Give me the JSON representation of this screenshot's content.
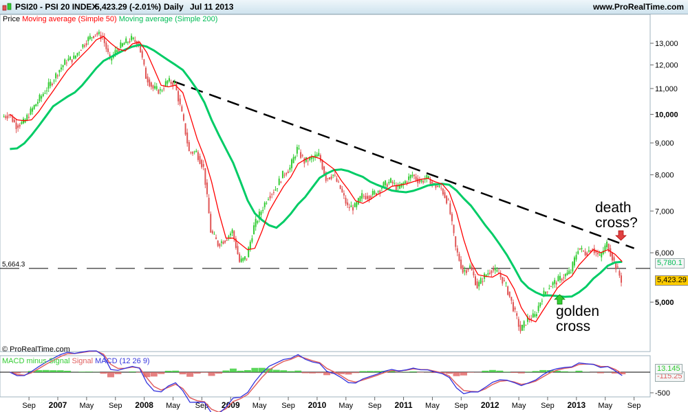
{
  "header": {
    "symbol": "PSI20 - PSI 20 INDEX",
    "quote": "5,423.29 (-2.01%)",
    "period": "Daily",
    "date": "Jul 11 2013",
    "site": "www.ProRealTime.com"
  },
  "legend": {
    "price": "Price",
    "ma50": "Moving average (Simple 50)",
    "ma200": "Moving average (Simple 200)"
  },
  "macd_legend": {
    "hist": "MACD minus Signal",
    "signal": "Signal",
    "macd": "MACD (12 26 9)"
  },
  "copyright": "© ProRealTime.com",
  "annotations": {
    "death_line1": "death",
    "death_line2": "cross?",
    "golden_line1": "golden",
    "golden_line2": "cross"
  },
  "colors": {
    "up": "#33cc33",
    "down": "#e05555",
    "ma50": "#ff0000",
    "ma200": "#00cc66",
    "macd": "#3333dd",
    "signal": "#e06060",
    "hist_pos": "#33cc33",
    "hist_neg": "#e06060",
    "last_price_bg": "#ffcc00"
  },
  "chart_data": {
    "type": "candlestick",
    "y_scale": "log",
    "ylim": [
      4200,
      14000
    ],
    "yticks": [
      "13,000",
      "12,000",
      "11,000",
      "10,000",
      "9,000",
      "8,000",
      "7,000",
      "6,000",
      "5,000"
    ],
    "ytick_values": [
      13000,
      12000,
      11000,
      10000,
      9000,
      8000,
      7000,
      6000,
      5000
    ],
    "xticks": [
      "Sep",
      "2007",
      "May",
      "Sep",
      "2008",
      "May",
      "Sep",
      "2009",
      "May",
      "Sep",
      "2010",
      "May",
      "Sep",
      "2011",
      "May",
      "Sep",
      "2012",
      "May",
      "Sep",
      "2013",
      "May",
      "Sep"
    ],
    "xtick_dates": [
      "2006-09",
      "2007-01",
      "2007-05",
      "2007-09",
      "2008-01",
      "2008-05",
      "2008-09",
      "2009-01",
      "2009-05",
      "2009-09",
      "2010-01",
      "2010-05",
      "2010-09",
      "2011-01",
      "2011-05",
      "2011-09",
      "2012-01",
      "2012-05",
      "2012-09",
      "2013-01",
      "2013-05",
      "2013-09"
    ],
    "months": [
      "2006-06",
      "2006-07",
      "2006-08",
      "2006-09",
      "2006-10",
      "2006-11",
      "2006-12",
      "2007-01",
      "2007-02",
      "2007-03",
      "2007-04",
      "2007-05",
      "2007-06",
      "2007-07",
      "2007-08",
      "2007-09",
      "2007-10",
      "2007-11",
      "2007-12",
      "2008-01",
      "2008-02",
      "2008-03",
      "2008-04",
      "2008-05",
      "2008-06",
      "2008-07",
      "2008-08",
      "2008-09",
      "2008-10",
      "2008-11",
      "2008-12",
      "2009-01",
      "2009-02",
      "2009-03",
      "2009-04",
      "2009-05",
      "2009-06",
      "2009-07",
      "2009-08",
      "2009-09",
      "2009-10",
      "2009-11",
      "2009-12",
      "2010-01",
      "2010-02",
      "2010-03",
      "2010-04",
      "2010-05",
      "2010-06",
      "2010-07",
      "2010-08",
      "2010-09",
      "2010-10",
      "2010-11",
      "2010-12",
      "2011-01",
      "2011-02",
      "2011-03",
      "2011-04",
      "2011-05",
      "2011-06",
      "2011-07",
      "2011-08",
      "2011-09",
      "2011-10",
      "2011-11",
      "2011-12",
      "2012-01",
      "2012-02",
      "2012-03",
      "2012-04",
      "2012-05",
      "2012-06",
      "2012-07",
      "2012-08",
      "2012-09",
      "2012-10",
      "2012-11",
      "2012-12",
      "2013-01",
      "2013-02",
      "2013-03",
      "2013-04",
      "2013-05",
      "2013-06",
      "2013-07"
    ],
    "close": [
      10000,
      9600,
      9700,
      10100,
      10500,
      10900,
      11300,
      11800,
      12200,
      12300,
      12800,
      13200,
      13500,
      13300,
      12200,
      12700,
      13000,
      13200,
      13000,
      11500,
      11000,
      10900,
      11300,
      11200,
      10000,
      8700,
      8700,
      8200,
      6500,
      6200,
      6300,
      6500,
      5800,
      5900,
      6600,
      7000,
      7400,
      7600,
      8000,
      8200,
      8800,
      8400,
      8500,
      8600,
      7900,
      8000,
      7600,
      7100,
      7100,
      7400,
      7400,
      7500,
      7700,
      7800,
      7600,
      7800,
      8000,
      7800,
      7900,
      7700,
      7600,
      7200,
      6100,
      5600,
      5700,
      5300,
      5500,
      5650,
      5550,
      5300,
      4900,
      4500,
      4700,
      4750,
      5100,
      5300,
      5400,
      5500,
      5600,
      6100,
      6000,
      6100,
      5900,
      6200,
      5800,
      5423.29
    ],
    "horizontal_line": {
      "value": 5664.3,
      "label": "5,664.3"
    },
    "trendline": {
      "from": {
        "date": "2008-05",
        "value": 11300
      },
      "to": {
        "date": "2013-09",
        "value": 6100
      }
    },
    "last_values": {
      "price": "5,423.29",
      "ma200": "5,780.1"
    },
    "macd": {
      "ylim": [
        -600,
        250
      ],
      "ytick": "-500",
      "last_macd": "13.145",
      "last_signal": "-115.25"
    }
  }
}
